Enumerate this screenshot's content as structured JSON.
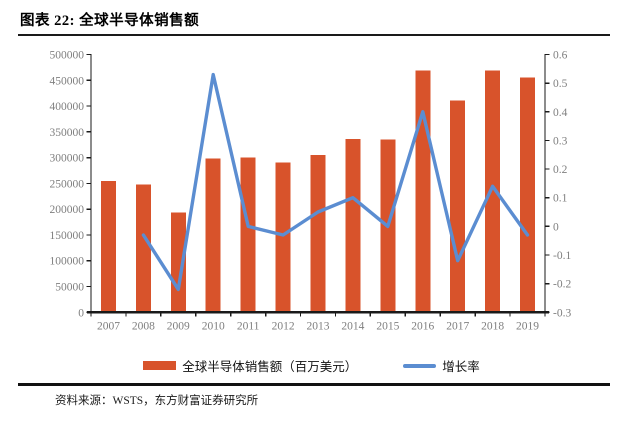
{
  "page": {
    "title": "图表 22: 全球半导体销售额",
    "source_note": "资料来源：WSTS，东方财富证券研究所"
  },
  "legend": {
    "bar_label": "全球半导体销售额（百万美元）",
    "line_label": "增长率"
  },
  "colors": {
    "bar": "#D8532B",
    "line": "#5B8DD1",
    "axis_text": "#7F7F7F",
    "axis_line": "#1A1A1A"
  },
  "chart_data": {
    "type": "bar",
    "subtype": "combo-bar-line",
    "title": "全球半导体销售额",
    "categories": [
      "2007",
      "2008",
      "2009",
      "2010",
      "2011",
      "2012",
      "2013",
      "2014",
      "2015",
      "2016",
      "2017",
      "2018",
      "2019"
    ],
    "series": [
      {
        "name": "全球半导体销售额（百万美元）",
        "type": "bar",
        "axis": "left",
        "values": [
          255000,
          248000,
          194000,
          298000,
          300000,
          291000,
          305000,
          336000,
          335000,
          469000,
          411000,
          469000,
          455000
        ]
      },
      {
        "name": "增长率",
        "type": "line",
        "axis": "right",
        "values": [
          null,
          -0.03,
          -0.22,
          0.53,
          0.0,
          -0.03,
          0.05,
          0.1,
          0.0,
          0.4,
          -0.12,
          0.14,
          -0.03
        ]
      }
    ],
    "left_axis": {
      "min": 0,
      "max": 500000,
      "step": 50000,
      "ticks": [
        "0",
        "50000",
        "100000",
        "150000",
        "200000",
        "250000",
        "300000",
        "350000",
        "400000",
        "450000",
        "500000"
      ]
    },
    "right_axis": {
      "min": -0.3,
      "max": 0.6,
      "step": 0.1,
      "ticks": [
        "-0.3",
        "-0.2",
        "-0.1",
        "0",
        "0.1",
        "0.2",
        "0.3",
        "0.4",
        "0.5",
        "0.6"
      ]
    },
    "grid": false,
    "legend_position": "bottom"
  }
}
